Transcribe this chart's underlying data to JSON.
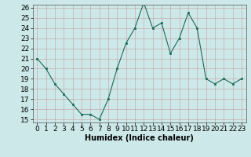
{
  "x": [
    0,
    1,
    2,
    3,
    4,
    5,
    6,
    7,
    8,
    9,
    10,
    11,
    12,
    13,
    14,
    15,
    16,
    17,
    18,
    19,
    20,
    21,
    22,
    23
  ],
  "y": [
    21,
    20,
    18.5,
    17.5,
    16.5,
    15.5,
    15.5,
    15,
    17,
    20,
    22.5,
    24,
    26.5,
    24,
    24.5,
    21.5,
    23,
    25.5,
    24,
    19,
    18.5,
    19,
    18.5,
    19
  ],
  "xlabel": "Humidex (Indice chaleur)",
  "ylim_min": 15,
  "ylim_max": 26,
  "xlim_min": 0,
  "xlim_max": 23,
  "line_color": "#1a6b5a",
  "marker_color": "#1a6b5a",
  "bg_color": "#cce8e8",
  "grid_color": "#b0d0d0",
  "yticks": [
    15,
    16,
    17,
    18,
    19,
    20,
    21,
    22,
    23,
    24,
    25,
    26
  ],
  "xticks": [
    0,
    1,
    2,
    3,
    4,
    5,
    6,
    7,
    8,
    9,
    10,
    11,
    12,
    13,
    14,
    15,
    16,
    17,
    18,
    19,
    20,
    21,
    22,
    23
  ],
  "xlabel_fontsize": 7,
  "tick_fontsize": 6.5
}
